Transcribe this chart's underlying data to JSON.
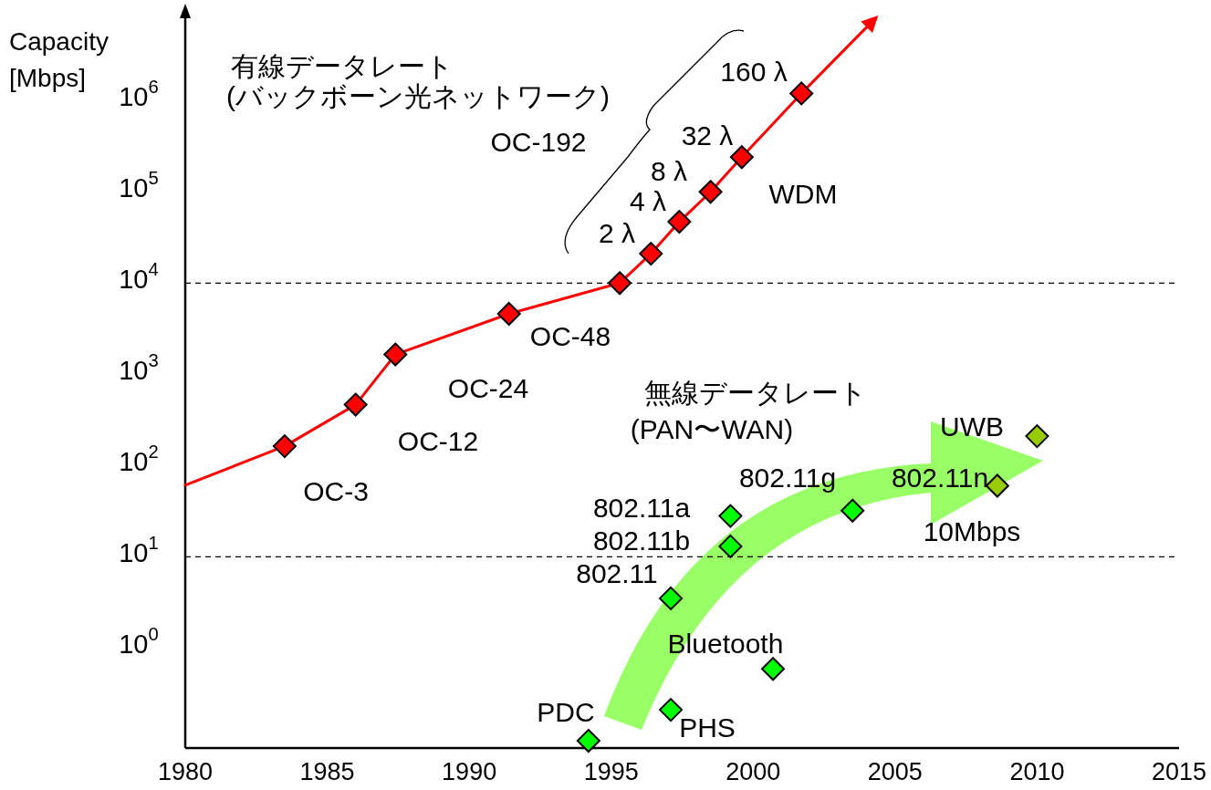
{
  "chart_data": {
    "type": "scatter",
    "ylabel": "Capacity [Mbps]",
    "log": "y",
    "grid": false,
    "xlim": [
      1980,
      2015
    ],
    "xticks": [
      1980,
      1985,
      1990,
      1995,
      2000,
      2005,
      2010,
      2015
    ],
    "ylim": [
      0.08,
      8000000
    ],
    "yticks": [
      {
        "value": 1,
        "label": "10$^{0}$"
      },
      {
        "value": 10,
        "label": "10$^{1}$"
      },
      {
        "value": 100,
        "label": "10$^{2}$"
      },
      {
        "value": 1000,
        "label": "10$^{3}$"
      },
      {
        "value": 10000,
        "label": "10$^{4}$"
      },
      {
        "value": 100000,
        "label": "10$^{5}$"
      },
      {
        "value": 1000000,
        "label": "10$^{6}$"
      }
    ],
    "ref_lines": [
      {
        "axis": "y",
        "value": 10000,
        "color": "#000000",
        "line_style": "dashed"
      },
      {
        "axis": "y",
        "value": 10,
        "color": "#000000",
        "line_style": "dashed"
      }
    ],
    "series": [
      {
        "type": "line",
        "color": "#ff0000",
        "marker": "none",
        "x": [
          1980,
          1983.5,
          1986.0,
          1987.4,
          1991.4,
          1995.3,
          1996.4,
          1997.4,
          1998.5,
          1999.6,
          2001.7,
          2004.2
        ],
        "values": [
          61,
          163,
          465,
          1650,
          4600,
          10000,
          21000,
          47000,
          100000,
          240000,
          1200000,
          7400000
        ]
      },
      {
        "color": "#ff0000",
        "marker": "diamond",
        "x": [
          1983.5,
          1986.0,
          1987.4,
          1991.4,
          1995.3,
          1996.4,
          1997.4,
          1998.5,
          1999.6,
          2001.7
        ],
        "values": [
          163,
          465,
          1650,
          4600,
          10000,
          21000,
          47000,
          100000,
          240000,
          1200000
        ]
      },
      {
        "color": "#00ff00",
        "marker": "diamond",
        "colors": [
          "#00ff00",
          "#00ff00",
          "#00ff00",
          "#00ff00",
          "#00ff00",
          "#00ff00",
          "#00ff00",
          "#99cc00",
          "#99cc00"
        ],
        "x": [
          1994.2,
          1997.1,
          1997.1,
          1999.2,
          1999.2,
          2000.7,
          2003.5,
          2008.6,
          2010.0
        ],
        "values": [
          0.096,
          0.21,
          3.5,
          13,
          28,
          0.59,
          32,
          60,
          210
        ]
      }
    ],
    "annotations": [
      "有線データレート",
      "(バックボーン光ネットワーク)",
      "OC-192",
      "160 λ",
      "32 λ",
      "8 λ",
      "4 λ",
      "2 λ",
      "WDM",
      "OC-48",
      "OC-24",
      "OC-12",
      "OC-3",
      "無線データレート",
      "(PAN〜WAN)",
      "UWB",
      "802.11g",
      "802.11n",
      "802.11a",
      "802.11b",
      "10Mbps",
      "802.11",
      "Bluetooth",
      "PDC",
      "PHS"
    ]
  }
}
